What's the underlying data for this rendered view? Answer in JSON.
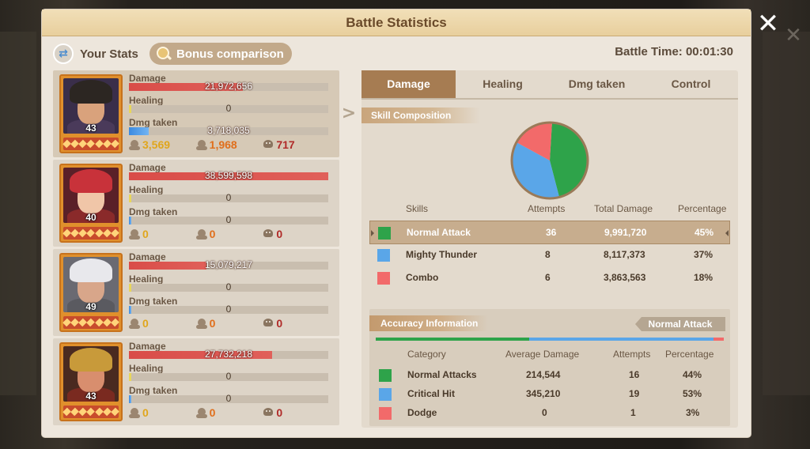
{
  "window": {
    "title": "Battle Statistics",
    "close_icon": "✕"
  },
  "header": {
    "your_stats_label": "Your Stats",
    "bonus_label": "Bonus comparison",
    "battle_time": "Battle Time: 00:01:30"
  },
  "heroes": [
    {
      "level": "43",
      "damage_label": "Damage",
      "damage_value": "21,972,656",
      "damage_fill": 0.57,
      "healing_label": "Healing",
      "healing_value": "0",
      "healing_fill": 0.01,
      "taken_label": "Dmg taken",
      "taken_value": "3,718,035",
      "taken_fill": 0.1,
      "sum_damage": "3,569",
      "sum_heal": "1,968",
      "sum_kill": "717",
      "colors": {
        "hair": "#2c2622",
        "body": "#4a3a5a",
        "skin": "#d9a27c",
        "bg": "#3a2e4a"
      }
    },
    {
      "level": "40",
      "damage_label": "Damage",
      "damage_value": "38,599,598",
      "damage_fill": 1.0,
      "healing_label": "Healing",
      "healing_value": "0",
      "healing_fill": 0.01,
      "taken_label": "Dmg taken",
      "taken_value": "0",
      "taken_fill": 0.01,
      "sum_damage": "0",
      "sum_heal": "0",
      "sum_kill": "0",
      "colors": {
        "hair": "#c8323a",
        "body": "#8a2a2a",
        "skin": "#f0c6a8",
        "bg": "#5a2028"
      }
    },
    {
      "level": "49",
      "damage_label": "Damage",
      "damage_value": "15,079,217",
      "damage_fill": 0.39,
      "healing_label": "Healing",
      "healing_value": "0",
      "healing_fill": 0.01,
      "taken_label": "Dmg taken",
      "taken_value": "0",
      "taken_fill": 0.01,
      "sum_damage": "0",
      "sum_heal": "0",
      "sum_kill": "0",
      "colors": {
        "hair": "#e8e8ec",
        "body": "#5a5a60",
        "skin": "#d8a68a",
        "bg": "#6a6a72"
      }
    },
    {
      "level": "43",
      "damage_label": "Damage",
      "damage_value": "27,732,218",
      "damage_fill": 0.72,
      "healing_label": "Healing",
      "healing_value": "0",
      "healing_fill": 0.01,
      "taken_label": "Dmg taken",
      "taken_value": "0",
      "taken_fill": 0.01,
      "sum_damage": "0",
      "sum_heal": "0",
      "sum_kill": "0",
      "colors": {
        "hair": "#c89a3a",
        "body": "#7a2a20",
        "skin": "#d88e6e",
        "bg": "#4a2a20"
      }
    }
  ],
  "tabs": [
    "Damage",
    "Healing",
    "Dmg taken",
    "Control"
  ],
  "active_tab": 0,
  "skill_composition": {
    "title": "Skill Composition",
    "columns": [
      "Skills",
      "Attempts",
      "Total Damage",
      "Percentage"
    ],
    "rows": [
      {
        "name": "Normal Attack",
        "attempts": "36",
        "total": "9,991,720",
        "pct": "45%",
        "color": "#2ea34a",
        "value": 45
      },
      {
        "name": "Mighty Thunder",
        "attempts": "8",
        "total": "8,117,373",
        "pct": "37%",
        "color": "#5aa6e8",
        "value": 37
      },
      {
        "name": "Combo",
        "attempts": "6",
        "total": "3,863,563",
        "pct": "18%",
        "color": "#f26a6a",
        "value": 18
      }
    ],
    "selected_row": 0
  },
  "accuracy": {
    "title": "Accuracy Information",
    "tag": "Normal Attack",
    "columns": [
      "Category",
      "Average Damage",
      "Attempts",
      "Percentage"
    ],
    "rows": [
      {
        "name": "Normal Attacks",
        "avg": "214,544",
        "attempts": "16",
        "pct": "44%",
        "color": "#2ea34a",
        "value": 44
      },
      {
        "name": "Critical Hit",
        "avg": "345,210",
        "attempts": "19",
        "pct": "53%",
        "color": "#5aa6e8",
        "value": 53
      },
      {
        "name": "Dodge",
        "avg": "0",
        "attempts": "1",
        "pct": "3%",
        "color": "#f26a6a",
        "value": 3
      }
    ]
  }
}
